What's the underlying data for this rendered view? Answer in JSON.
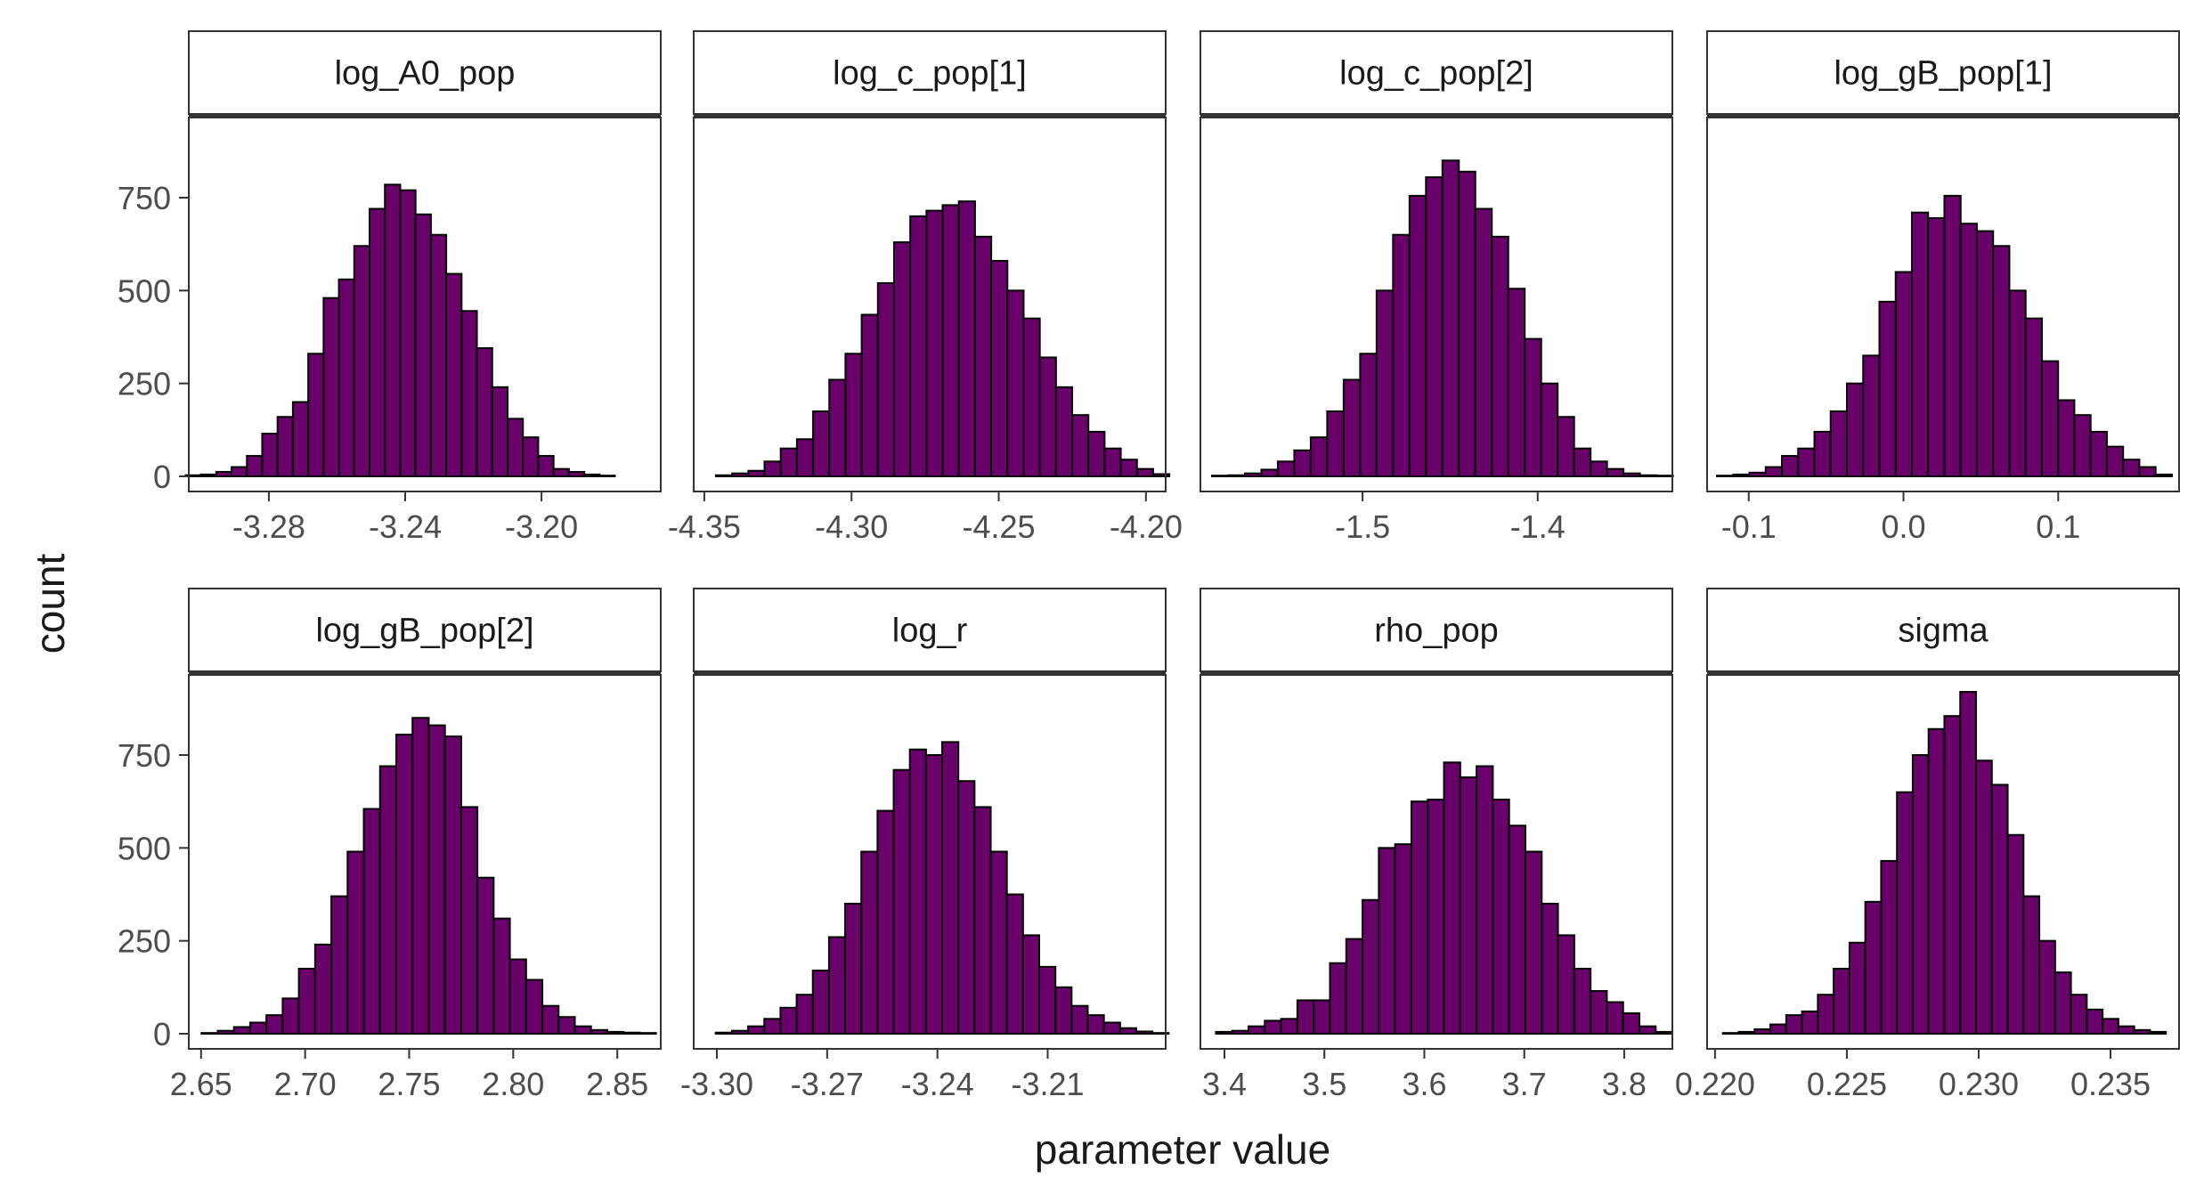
{
  "chart_data": {
    "type": "bar",
    "facet_layout": "2x4",
    "xlabel": "parameter value",
    "ylabel": "count",
    "y_ticks": [
      0,
      250,
      500,
      750
    ],
    "ylim": [
      0,
      950
    ],
    "fill_color": "#6a006a",
    "edge_color": "#000000",
    "grid": false,
    "panels": [
      {
        "name": "log_A0_pop",
        "xlim": [
          -3.3035,
          -3.165
        ],
        "x_ticks": [
          "-3.28",
          "-3.24",
          "-3.20"
        ],
        "x_tick_values": [
          -3.28,
          -3.24,
          -3.2
        ],
        "bins": [
          [
            -3.3022,
            3
          ],
          [
            -3.2977,
            5
          ],
          [
            -3.2932,
            12
          ],
          [
            -3.2887,
            25
          ],
          [
            -3.2842,
            55
          ],
          [
            -3.2797,
            115
          ],
          [
            -3.2752,
            160
          ],
          [
            -3.2707,
            200
          ],
          [
            -3.2662,
            330
          ],
          [
            -3.2617,
            480
          ],
          [
            -3.2572,
            530
          ],
          [
            -3.2527,
            620
          ],
          [
            -3.2482,
            720
          ],
          [
            -3.2437,
            785
          ],
          [
            -3.2392,
            770
          ],
          [
            -3.2347,
            705
          ],
          [
            -3.2302,
            650
          ],
          [
            -3.2257,
            545
          ],
          [
            -3.2212,
            445
          ],
          [
            -3.2167,
            345
          ],
          [
            -3.2122,
            240
          ],
          [
            -3.2077,
            155
          ],
          [
            -3.2032,
            105
          ],
          [
            -3.1987,
            55
          ],
          [
            -3.1942,
            20
          ],
          [
            -3.1897,
            12
          ],
          [
            -3.1852,
            5
          ],
          [
            -3.1807,
            2
          ]
        ],
        "bin_width": 0.0045
      },
      {
        "name": "log_c_pop[1]",
        "xlim": [
          -4.3536,
          -4.1933
        ],
        "x_ticks": [
          "-4.35",
          "-4.30",
          "-4.25",
          "-4.20"
        ],
        "x_tick_values": [
          -4.35,
          -4.3,
          -4.25,
          -4.2
        ],
        "bins": [
          [
            -4.3433,
            3
          ],
          [
            -4.3378,
            8
          ],
          [
            -4.3323,
            15
          ],
          [
            -4.3268,
            40
          ],
          [
            -4.3213,
            75
          ],
          [
            -4.3158,
            100
          ],
          [
            -4.3103,
            175
          ],
          [
            -4.3048,
            260
          ],
          [
            -4.2993,
            330
          ],
          [
            -4.2938,
            435
          ],
          [
            -4.2883,
            520
          ],
          [
            -4.2828,
            630
          ],
          [
            -4.2773,
            700
          ],
          [
            -4.2718,
            715
          ],
          [
            -4.2663,
            730
          ],
          [
            -4.2608,
            740
          ],
          [
            -4.2553,
            645
          ],
          [
            -4.2498,
            580
          ],
          [
            -4.2443,
            500
          ],
          [
            -4.2388,
            425
          ],
          [
            -4.2333,
            320
          ],
          [
            -4.2278,
            240
          ],
          [
            -4.2223,
            165
          ],
          [
            -4.2168,
            120
          ],
          [
            -4.2113,
            75
          ],
          [
            -4.2058,
            45
          ],
          [
            -4.2003,
            20
          ],
          [
            -4.1948,
            6
          ]
        ],
        "bin_width": 0.0055
      },
      {
        "name": "log_c_pop[2]",
        "xlim": [
          -1.5926,
          -1.3231
        ],
        "x_ticks": [
          "-1.5",
          "-1.4"
        ],
        "x_tick_values": [
          -1.5,
          -1.4
        ],
        "bins": [
          [
            -1.5813,
            2
          ],
          [
            -1.5719,
            3
          ],
          [
            -1.5625,
            8
          ],
          [
            -1.5531,
            18
          ],
          [
            -1.5437,
            40
          ],
          [
            -1.5343,
            70
          ],
          [
            -1.5249,
            105
          ],
          [
            -1.5155,
            175
          ],
          [
            -1.5061,
            260
          ],
          [
            -1.4967,
            330
          ],
          [
            -1.4873,
            500
          ],
          [
            -1.4779,
            650
          ],
          [
            -1.4685,
            755
          ],
          [
            -1.4591,
            805
          ],
          [
            -1.4497,
            850
          ],
          [
            -1.4403,
            820
          ],
          [
            -1.4309,
            720
          ],
          [
            -1.4215,
            645
          ],
          [
            -1.4121,
            505
          ],
          [
            -1.4027,
            370
          ],
          [
            -1.3933,
            250
          ],
          [
            -1.3839,
            160
          ],
          [
            -1.3745,
            75
          ],
          [
            -1.3651,
            40
          ],
          [
            -1.3557,
            20
          ],
          [
            -1.3463,
            8
          ],
          [
            -1.3369,
            3
          ],
          [
            -1.3275,
            2
          ]
        ],
        "bin_width": 0.0094
      },
      {
        "name": "log_gB_pop[1]",
        "xlim": [
          -0.1269,
          0.1781
        ],
        "x_ticks": [
          "-0.1",
          "0.0",
          "0.1"
        ],
        "x_tick_values": [
          -0.1,
          0.0,
          0.1
        ],
        "bins": [
          [
            -0.1153,
            2
          ],
          [
            -0.1048,
            5
          ],
          [
            -0.0943,
            10
          ],
          [
            -0.0838,
            25
          ],
          [
            -0.0733,
            55
          ],
          [
            -0.0628,
            75
          ],
          [
            -0.0523,
            120
          ],
          [
            -0.0418,
            175
          ],
          [
            -0.0313,
            250
          ],
          [
            -0.0208,
            325
          ],
          [
            -0.0103,
            470
          ],
          [
            0.0002,
            550
          ],
          [
            0.0107,
            710
          ],
          [
            0.0212,
            695
          ],
          [
            0.0317,
            755
          ],
          [
            0.0422,
            680
          ],
          [
            0.0527,
            660
          ],
          [
            0.0632,
            620
          ],
          [
            0.0737,
            500
          ],
          [
            0.0842,
            425
          ],
          [
            0.0947,
            310
          ],
          [
            0.1052,
            205
          ],
          [
            0.1157,
            165
          ],
          [
            0.1262,
            120
          ],
          [
            0.1367,
            80
          ],
          [
            0.1472,
            45
          ],
          [
            0.1577,
            25
          ],
          [
            0.1682,
            5
          ]
        ],
        "bin_width": 0.0105
      },
      {
        "name": "log_gB_pop[2]",
        "xlim": [
          2.6441,
          2.8709
        ],
        "x_ticks": [
          "2.65",
          "2.70",
          "2.75",
          "2.80",
          "2.85"
        ],
        "x_tick_values": [
          2.65,
          2.7,
          2.75,
          2.8,
          2.85
        ],
        "bins": [
          [
            2.6541,
            2
          ],
          [
            2.6619,
            8
          ],
          [
            2.6697,
            18
          ],
          [
            2.6775,
            30
          ],
          [
            2.6853,
            50
          ],
          [
            2.6931,
            95
          ],
          [
            2.7009,
            175
          ],
          [
            2.7087,
            240
          ],
          [
            2.7165,
            370
          ],
          [
            2.7243,
            490
          ],
          [
            2.7321,
            605
          ],
          [
            2.7399,
            720
          ],
          [
            2.7477,
            805
          ],
          [
            2.7555,
            850
          ],
          [
            2.7633,
            830
          ],
          [
            2.7711,
            800
          ],
          [
            2.7789,
            610
          ],
          [
            2.7867,
            420
          ],
          [
            2.7945,
            310
          ],
          [
            2.8023,
            200
          ],
          [
            2.8101,
            145
          ],
          [
            2.8179,
            75
          ],
          [
            2.8257,
            45
          ],
          [
            2.8335,
            20
          ],
          [
            2.8413,
            10
          ],
          [
            2.8491,
            5
          ],
          [
            2.8569,
            3
          ],
          [
            2.8647,
            2
          ]
        ],
        "bin_width": 0.0078
      },
      {
        "name": "log_r",
        "xlim": [
          -3.3063,
          -3.1779
        ],
        "x_ticks": [
          "-3.30",
          "-3.27",
          "-3.24",
          "-3.21"
        ],
        "x_tick_values": [
          -3.3,
          -3.27,
          -3.24,
          -3.21
        ],
        "bins": [
          [
            -3.2981,
            3
          ],
          [
            -3.2937,
            8
          ],
          [
            -3.2893,
            20
          ],
          [
            -3.2849,
            40
          ],
          [
            -3.2805,
            70
          ],
          [
            -3.2761,
            105
          ],
          [
            -3.2717,
            170
          ],
          [
            -3.2673,
            260
          ],
          [
            -3.2629,
            350
          ],
          [
            -3.2585,
            490
          ],
          [
            -3.2541,
            600
          ],
          [
            -3.2497,
            710
          ],
          [
            -3.2453,
            765
          ],
          [
            -3.2409,
            750
          ],
          [
            -3.2365,
            785
          ],
          [
            -3.2321,
            680
          ],
          [
            -3.2277,
            610
          ],
          [
            -3.2233,
            490
          ],
          [
            -3.2189,
            375
          ],
          [
            -3.2145,
            265
          ],
          [
            -3.2101,
            180
          ],
          [
            -3.2057,
            125
          ],
          [
            -3.2013,
            75
          ],
          [
            -3.1969,
            50
          ],
          [
            -3.1925,
            30
          ],
          [
            -3.1881,
            15
          ],
          [
            -3.1837,
            6
          ],
          [
            -3.1793,
            2
          ]
        ],
        "bin_width": 0.0044
      },
      {
        "name": "rho_pop",
        "xlim": [
          3.3759,
          3.8482
        ],
        "x_ticks": [
          "3.4",
          "3.5",
          "3.6",
          "3.7",
          "3.8"
        ],
        "x_tick_values": [
          3.4,
          3.5,
          3.6,
          3.7,
          3.8
        ],
        "bins": [
          [
            3.3996,
            5
          ],
          [
            3.4159,
            8
          ],
          [
            3.4322,
            20
          ],
          [
            3.4485,
            35
          ],
          [
            3.4648,
            40
          ],
          [
            3.4811,
            90
          ],
          [
            3.4974,
            90
          ],
          [
            3.5137,
            190
          ],
          [
            3.53,
            255
          ],
          [
            3.5463,
            360
          ],
          [
            3.5626,
            500
          ],
          [
            3.5789,
            510
          ],
          [
            3.5952,
            625
          ],
          [
            3.6115,
            630
          ],
          [
            3.6278,
            730
          ],
          [
            3.6441,
            690
          ],
          [
            3.6604,
            720
          ],
          [
            3.6767,
            630
          ],
          [
            3.693,
            560
          ],
          [
            3.7093,
            490
          ],
          [
            3.7256,
            350
          ],
          [
            3.7419,
            265
          ],
          [
            3.7582,
            175
          ],
          [
            3.7745,
            115
          ],
          [
            3.7908,
            85
          ],
          [
            3.8071,
            55
          ],
          [
            3.8234,
            20
          ],
          [
            3.8397,
            5
          ]
        ],
        "bin_width": 0.0163
      },
      {
        "name": "sigma",
        "xlim": [
          0.2197,
          0.2376
        ],
        "x_ticks": [
          "0.220",
          "0.225",
          "0.230",
          "0.235"
        ],
        "x_tick_values": [
          0.22,
          0.225,
          0.23,
          0.235
        ],
        "bins": [
          [
            0.2206,
            2
          ],
          [
            0.2212,
            5
          ],
          [
            0.2218,
            12
          ],
          [
            0.2224,
            25
          ],
          [
            0.223,
            50
          ],
          [
            0.2236,
            60
          ],
          [
            0.2242,
            105
          ],
          [
            0.2248,
            175
          ],
          [
            0.2254,
            245
          ],
          [
            0.226,
            355
          ],
          [
            0.2266,
            465
          ],
          [
            0.2272,
            650
          ],
          [
            0.2278,
            750
          ],
          [
            0.2284,
            820
          ],
          [
            0.229,
            855
          ],
          [
            0.2296,
            920
          ],
          [
            0.2302,
            735
          ],
          [
            0.2308,
            670
          ],
          [
            0.2314,
            535
          ],
          [
            0.232,
            370
          ],
          [
            0.2326,
            250
          ],
          [
            0.2332,
            165
          ],
          [
            0.2338,
            105
          ],
          [
            0.2344,
            65
          ],
          [
            0.235,
            40
          ],
          [
            0.2356,
            20
          ],
          [
            0.2362,
            10
          ],
          [
            0.2368,
            5
          ]
        ],
        "bin_width": 0.0006
      }
    ]
  }
}
